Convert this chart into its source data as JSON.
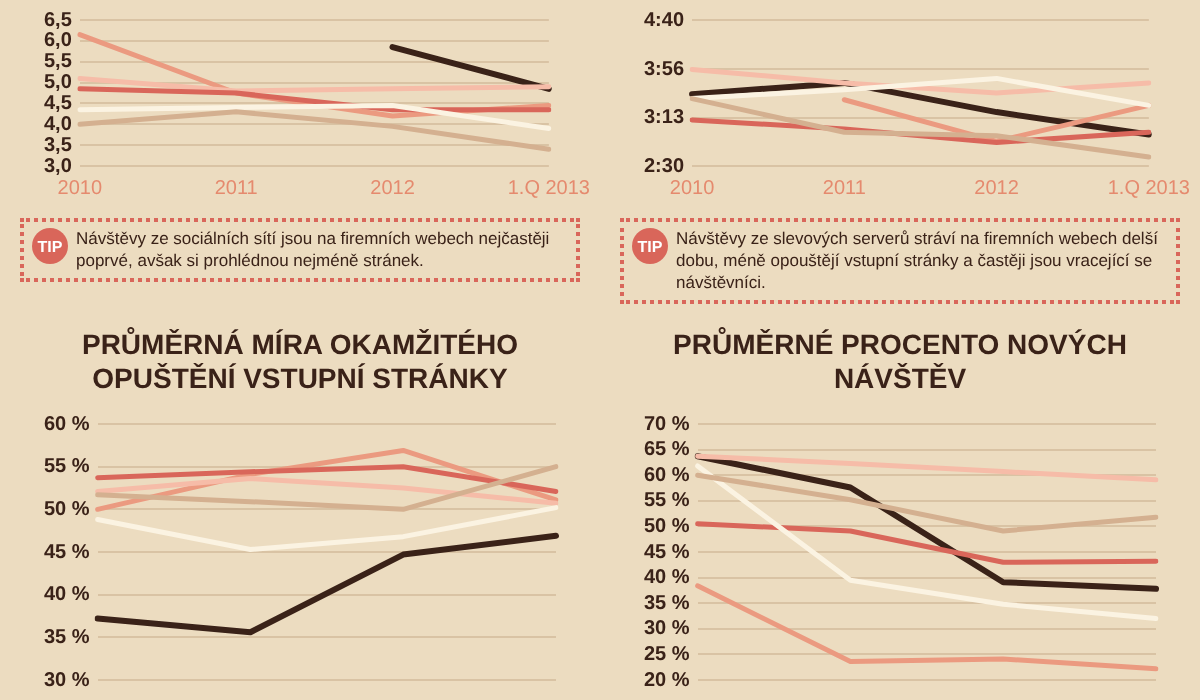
{
  "chart_data": [
    {
      "type": "line",
      "categories": [
        "2010",
        "2011",
        "2012",
        "1.Q 2013"
      ],
      "ylim": [
        3,
        6.5
      ],
      "yticks": [
        {
          "value": 3,
          "label": "3,0"
        },
        {
          "value": 3.5,
          "label": "3,5"
        },
        {
          "value": 4,
          "label": "4,0"
        },
        {
          "value": 4.5,
          "label": "4,5"
        },
        {
          "value": 5,
          "label": "5,0"
        },
        {
          "value": 5.5,
          "label": "5,5"
        },
        {
          "value": 6,
          "label": "6,0"
        },
        {
          "value": 6.5,
          "label": "6,5"
        }
      ],
      "grid": "y",
      "series": [
        {
          "color": "#d4b090",
          "values": [
            4.0,
            4.3,
            3.95,
            3.4
          ]
        },
        {
          "color": "#fbf3e2",
          "values": [
            4.35,
            4.4,
            4.45,
            3.9
          ]
        },
        {
          "color": "#d9665a",
          "values": [
            4.85,
            4.75,
            4.35,
            4.35
          ]
        },
        {
          "color": "#f6bca8",
          "values": [
            5.1,
            4.8,
            4.85,
            4.9
          ]
        },
        {
          "color": "#eb9a80",
          "values": [
            6.15,
            4.75,
            4.2,
            4.45
          ]
        },
        {
          "color": "#3a2218",
          "values": [
            null,
            null,
            5.85,
            4.85
          ]
        }
      ],
      "annotations": [
        "TIP",
        "Návštěvy ze sociálních sítí jsou na firemních webech nejčastěji poprvé, avšak si prohlédnou nejméně stránek."
      ]
    },
    {
      "type": "line",
      "categories": [
        "2010",
        "2011",
        "2012",
        "1.Q 2013"
      ],
      "ylim": [
        150,
        280
      ],
      "yticks": [
        {
          "value": 150,
          "label": "2:30"
        },
        {
          "value": 193,
          "label": "3:13"
        },
        {
          "value": 236,
          "label": "3:56"
        },
        {
          "value": 280,
          "label": "4:40"
        }
      ],
      "grid": "y",
      "series": [
        {
          "color": "#d4b090",
          "values": [
            210,
            180,
            177,
            158
          ]
        },
        {
          "color": "#fbf3e2",
          "values": [
            210,
            218,
            228,
            204
          ]
        },
        {
          "color": "#d9665a",
          "values": [
            191,
            183,
            171,
            180
          ]
        },
        {
          "color": "#f6bca8",
          "values": [
            236,
            224,
            215,
            224
          ]
        },
        {
          "color": "#eb9a80",
          "values": [
            null,
            209,
            172,
            204
          ]
        },
        {
          "color": "#3a2218",
          "values": [
            214,
            224,
            198,
            178
          ]
        }
      ],
      "annotations": [
        "TIP",
        "Návštěvy ze slevových serverů stráví na firemních webech delší dobu, méně opouštějí vstupní stránky a častěji jsou vracející se návštěvníci."
      ]
    },
    {
      "type": "line",
      "title": "PRŮMĚRNÁ MÍRA OKAMŽITÉHO OPUŠTĚNÍ VSTUPNÍ STRÁNKY",
      "categories": [
        null,
        null,
        null,
        null
      ],
      "tick_labels": "y",
      "ylim": [
        30,
        60
      ],
      "yticks": [
        {
          "value": 30,
          "label": "30 %"
        },
        {
          "value": 35,
          "label": "35 %"
        },
        {
          "value": 40,
          "label": "40 %"
        },
        {
          "value": 45,
          "label": "45 %"
        },
        {
          "value": 50,
          "label": "50 %"
        },
        {
          "value": 55,
          "label": "55 %"
        },
        {
          "value": 60,
          "label": "60 %"
        }
      ],
      "grid": "y",
      "series": [
        {
          "color": "#d4b090",
          "values": [
            51.7,
            50.9,
            50.0,
            55.0
          ]
        },
        {
          "color": "#fbf3e2",
          "values": [
            48.8,
            45.3,
            46.8,
            50.2
          ]
        },
        {
          "color": "#d9665a",
          "values": [
            53.7,
            54.4,
            55.0,
            52.1
          ]
        },
        {
          "color": "#f6bca8",
          "values": [
            52.1,
            53.6,
            52.5,
            50.7
          ]
        },
        {
          "color": "#eb9a80",
          "values": [
            50.0,
            54.1,
            56.9,
            51.1
          ]
        },
        {
          "color": "#3a2218",
          "values": [
            37.2,
            35.6,
            44.7,
            46.9
          ]
        }
      ]
    },
    {
      "type": "line",
      "title": "PRŮMĚRNÉ PROCENTO NOVÝCH NÁVŠTĚV",
      "categories": [
        null,
        null,
        null,
        null
      ],
      "tick_labels": "y",
      "ylim": [
        20,
        70
      ],
      "yticks": [
        {
          "value": 20,
          "label": "20 %"
        },
        {
          "value": 25,
          "label": "25 %"
        },
        {
          "value": 30,
          "label": "30 %"
        },
        {
          "value": 35,
          "label": "35 %"
        },
        {
          "value": 40,
          "label": "40 %"
        },
        {
          "value": 45,
          "label": "45 %"
        },
        {
          "value": 50,
          "label": "50 %"
        },
        {
          "value": 55,
          "label": "55 %"
        },
        {
          "value": 60,
          "label": "60 %"
        },
        {
          "value": 65,
          "label": "65 %"
        },
        {
          "value": 70,
          "label": "70 %"
        }
      ],
      "grid": "y",
      "series": [
        {
          "color": "#d4b090",
          "values": [
            60.0,
            55.2,
            49.1,
            51.8
          ]
        },
        {
          "color": "#fbf3e2",
          "values": [
            61.8,
            39.5,
            34.8,
            32.0
          ]
        },
        {
          "color": "#d9665a",
          "values": [
            50.5,
            49.1,
            43.0,
            43.2
          ]
        },
        {
          "color": "#f6bca8",
          "values": [
            63.7,
            62.3,
            60.7,
            59.1
          ]
        },
        {
          "color": "#eb9a80",
          "values": [
            38.4,
            23.6,
            24.1,
            22.2
          ]
        },
        {
          "color": "#3a2218",
          "values": [
            63.7,
            57.6,
            39.1,
            37.8
          ]
        }
      ]
    }
  ]
}
